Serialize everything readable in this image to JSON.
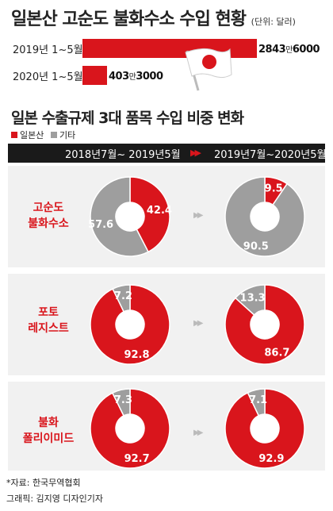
{
  "header": {
    "title": "일본산 고순도 불화수소 수입 현황",
    "unit": "(단위: 달러)"
  },
  "imports": {
    "rows": [
      {
        "label": "2019년 1~5월",
        "value_main": "2843",
        "value_man": "만",
        "value_rest": "6000",
        "value": 28436000
      },
      {
        "label": "2020년 1~5월",
        "value_main": "403",
        "value_man": "만",
        "value_rest": "3000",
        "value": 4033000
      }
    ]
  },
  "section": {
    "title": "일본 수출규제 3대 품목 수입 비중 변화",
    "legend": [
      {
        "label": "일본산",
        "color": "#d9151c"
      },
      {
        "label": "기타",
        "color": "#9e9e9e"
      }
    ]
  },
  "periods": {
    "before": "2018년7월~ 2019년5월",
    "after": "2019년7월~2020년5월"
  },
  "colors": {
    "japan": "#d9151c",
    "other": "#9e9e9e",
    "bg": "#f1f1f1"
  },
  "chart_data": [
    {
      "type": "bar",
      "title": "일본산 고순도 불화수소 수입 현황",
      "categories": [
        "2019년 1~5월",
        "2020년 1~5월"
      ],
      "values": [
        28436000,
        4033000
      ],
      "ylabel": "(단위: 달러)"
    },
    {
      "type": "pie",
      "title": "일본 수출규제 3대 품목 수입 비중 변화",
      "series_names": [
        "일본산",
        "기타"
      ],
      "items": [
        {
          "name_lines": [
            "고순도",
            "불화수소"
          ],
          "before": [
            42.4,
            57.6
          ],
          "after": [
            9.5,
            90.5
          ]
        },
        {
          "name_lines": [
            "포토",
            "레지스트"
          ],
          "before": [
            92.8,
            7.2
          ],
          "after": [
            86.7,
            13.3
          ]
        },
        {
          "name_lines": [
            "불화",
            "폴리이미드"
          ],
          "before": [
            92.7,
            7.3
          ],
          "after": [
            92.9,
            7.1
          ]
        }
      ]
    }
  ],
  "footer": {
    "source": "*자료: 한국무역협회",
    "credit": "그래픽: 김지영 디자인기자"
  }
}
